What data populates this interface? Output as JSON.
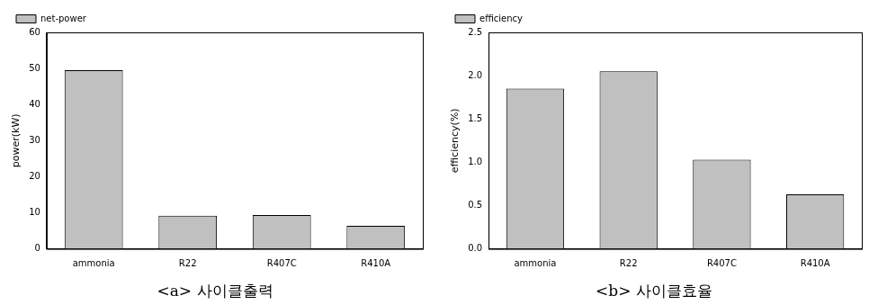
{
  "chart_data": [
    {
      "type": "bar",
      "title": "<a> 사이클출력",
      "y_label": "power(kW)",
      "categories": [
        "ammonia",
        "R22",
        "R407C",
        "R410A"
      ],
      "series": [
        {
          "name": "net-power",
          "color": "#c0c0c0",
          "values": [
            49.5,
            9.2,
            9.4,
            6.4
          ]
        }
      ],
      "ylim": [
        0,
        60
      ],
      "yticks": [
        0,
        10,
        20,
        30,
        40,
        50,
        60
      ],
      "legend": "upper left",
      "grid": false
    },
    {
      "type": "bar",
      "title": "<b> 사이클효율",
      "y_label": "efficiency(%)",
      "categories": [
        "ammonia",
        "R22",
        "R407C",
        "R410A"
      ],
      "series": [
        {
          "name": "efficiency",
          "color": "#c0c0c0",
          "values": [
            1.85,
            2.05,
            1.03,
            0.63
          ]
        }
      ],
      "ylim": [
        0,
        2.5
      ],
      "yticks": [
        {
          "value": 0,
          "label": "0.0"
        },
        0.5,
        {
          "value": 1,
          "label": "1.0"
        },
        1.5,
        {
          "value": 2,
          "label": "2.0"
        },
        2.5
      ],
      "legend": "upper left",
      "grid": false
    }
  ]
}
